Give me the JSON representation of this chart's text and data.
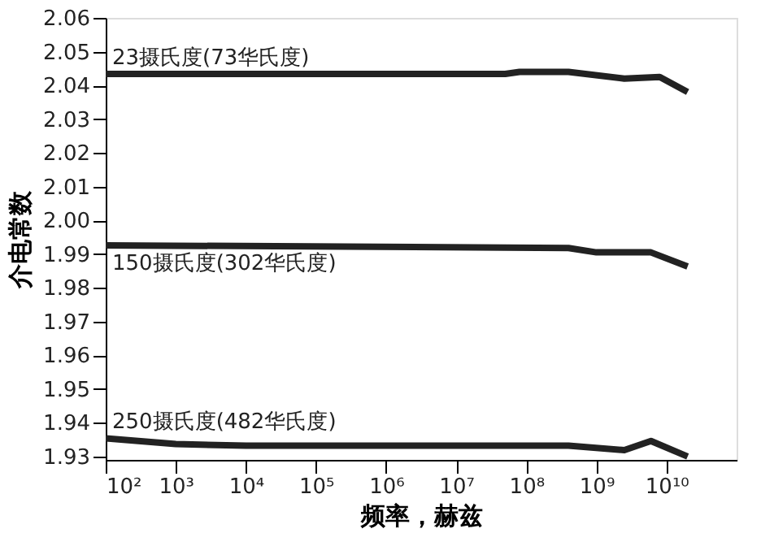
{
  "chart_data": {
    "type": "line",
    "xlabel": "频率，赫兹",
    "ylabel": "介电常数",
    "log": "x",
    "xlim": [
      100,
      100000000000
    ],
    "xticks": [
      {
        "value": 100,
        "label": "10²"
      },
      {
        "value": 1000,
        "label": "10³"
      },
      {
        "value": 10000,
        "label": "10⁴"
      },
      {
        "value": 100000,
        "label": "10⁵"
      },
      {
        "value": 1000000,
        "label": "10⁶"
      },
      {
        "value": 10000000,
        "label": "10⁷"
      },
      {
        "value": 100000000,
        "label": "10⁸"
      },
      {
        "value": 1000000000,
        "label": "10⁹"
      },
      {
        "value": 10000000000,
        "label": "10¹⁰"
      }
    ],
    "ylim": [
      1.929,
      2.06
    ],
    "yticks": [
      1.93,
      1.94,
      1.95,
      1.96,
      1.97,
      1.98,
      1.99,
      {
        "value": 2.0,
        "label": "2.00"
      },
      2.01,
      2.02,
      2.03,
      2.04,
      2.05,
      2.06
    ],
    "grid": false,
    "marker": "none",
    "line_style": "solid",
    "series": [
      {
        "name": "23摄氏度(73华氏度)",
        "color": "#222222",
        "x": [
          100,
          50000000,
          80000000,
          400000000,
          2500000000,
          8000000000,
          20000000000
        ],
        "values": [
          2.0434,
          2.0434,
          2.044,
          2.044,
          2.042,
          2.0425,
          2.038
        ]
      },
      {
        "name": "150摄氏度(302华氏度)",
        "color": "#222222",
        "x": [
          100,
          400000000,
          1000000000,
          6000000000,
          20000000000
        ],
        "values": [
          1.9926,
          1.9918,
          1.9905,
          1.9905,
          1.9863
        ]
      },
      {
        "name": "250摄氏度(482华氏度)",
        "color": "#222222",
        "x": [
          100,
          1000,
          10000,
          400000000,
          2500000000,
          6000000000,
          20000000000
        ],
        "values": [
          1.9354,
          1.9337,
          1.9332,
          1.9332,
          1.9319,
          1.9346,
          1.93
        ]
      }
    ]
  }
}
